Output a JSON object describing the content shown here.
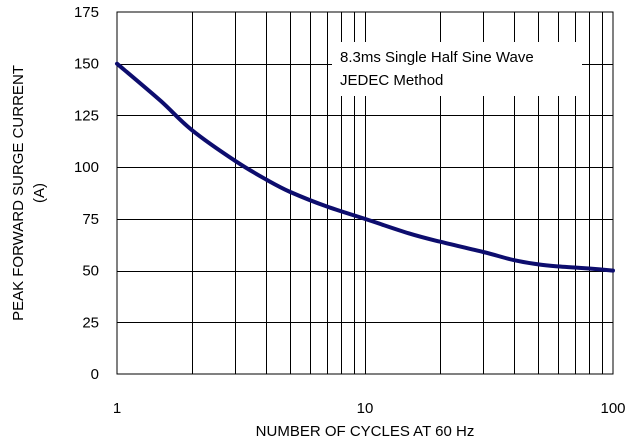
{
  "chart_data": {
    "type": "line",
    "title": "",
    "xlabel": "NUMBER OF CYCLES AT 60 Hz",
    "ylabel_lines": [
      "PEAK FORWARD SURGE CURRENT",
      "(A)"
    ],
    "x_scale": "log",
    "xlim": [
      1,
      100
    ],
    "ylim": [
      0,
      175
    ],
    "x_ticks": [
      1,
      10,
      100
    ],
    "x_tick_labels": [
      "1",
      "10",
      "100"
    ],
    "y_ticks": [
      0,
      25,
      50,
      75,
      100,
      125,
      150,
      175
    ],
    "y_tick_labels": [
      "0",
      "25",
      "50",
      "75",
      "100",
      "125",
      "150",
      "175"
    ],
    "grid": true,
    "annotation_lines": [
      "8.3ms Single Half Sine  Wave",
      "JEDEC Method"
    ],
    "series": [
      {
        "color": "#0d0d6e",
        "x": [
          1,
          1.5,
          2,
          3,
          4,
          5,
          7,
          10,
          15,
          20,
          30,
          40,
          50,
          60,
          70,
          80,
          100
        ],
        "y": [
          150,
          132,
          118,
          103,
          94,
          88,
          81,
          75,
          68,
          64,
          59,
          55,
          53,
          52,
          51.5,
          51,
          50
        ]
      }
    ]
  }
}
